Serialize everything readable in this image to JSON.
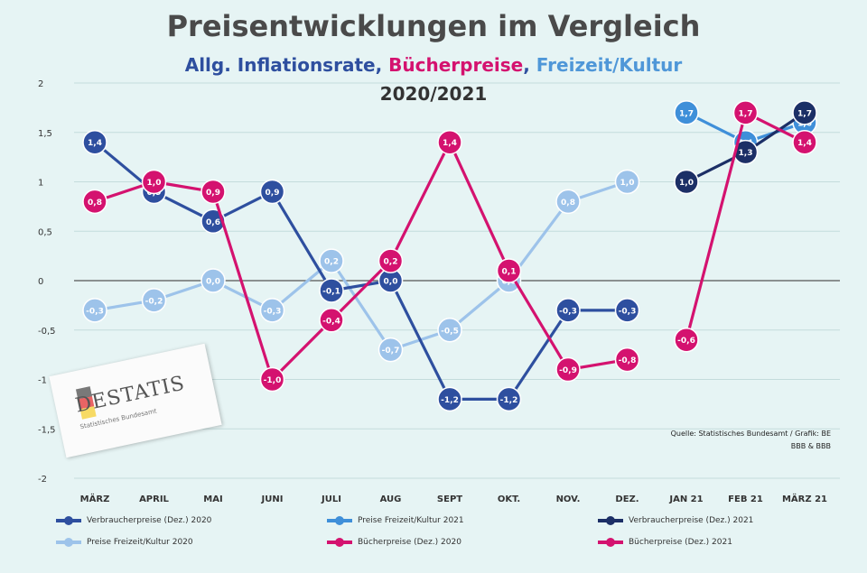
{
  "title": "Preisentwicklungen im  Vergleich",
  "subtitle": {
    "part1": "Allg. Inflationsrate",
    "sep1": ", ",
    "part2": "Bücherpreise",
    "sep2": ", ",
    "part3": "Freizeit/Kultur"
  },
  "years": "2020/2021",
  "source": {
    "line1": "Quelle: Statistisches Bundesamt / Grafik: BE",
    "line2": "BBB & BBB"
  },
  "logo": {
    "text": "DESTATIS",
    "subtext": "Statistisches Bundesamt"
  },
  "colors": {
    "inflation": "#2e4f9f",
    "inflation2021": "#1c2f66",
    "leisure2020": "#9dc3ea",
    "leisure2021": "#3f8fd9",
    "books": "#d4126f",
    "grid": "#c4dcdc",
    "axis": "#555555"
  },
  "chart_data": {
    "type": "line",
    "categories": [
      "MÄRZ",
      "APRIL",
      "MAI",
      "JUNI",
      "JULI",
      "AUG",
      "SEPT",
      "OKT.",
      "NOV.",
      "DEZ.",
      "JAN 21",
      "FEB 21",
      "MÄRZ 21"
    ],
    "ylim": [
      -2,
      2
    ],
    "yticks": [
      "2",
      "1,5",
      "1",
      "0,5",
      "0",
      "-0,5",
      "-1",
      "-1,5",
      "-2"
    ],
    "ytick_values": [
      2,
      1.5,
      1,
      0.5,
      0,
      -0.5,
      -1,
      -1.5,
      -2
    ],
    "series": [
      {
        "name": "Preise Freizeit/Kultur 2020",
        "color": "#9dc3ea",
        "labels": [
          "-0,3",
          "-0,2",
          "0,0",
          "-0,3",
          "0,2",
          "-0,7",
          "-0,5",
          "0,0",
          "0,8",
          "1,0",
          null,
          null,
          null
        ],
        "values": [
          -0.3,
          -0.2,
          0.0,
          -0.3,
          0.2,
          -0.7,
          -0.5,
          0.0,
          0.8,
          1.0,
          null,
          null,
          null
        ]
      },
      {
        "name": "Verbraucherpreise (Dez.) 2020",
        "color": "#2e4f9f",
        "labels": [
          "1,4",
          "0,9",
          "0,6",
          "0,9",
          "-0,1",
          "0,0",
          "-1,2",
          "-1,2",
          "-0,3",
          "-0,3",
          null,
          null,
          null
        ],
        "values": [
          1.4,
          0.9,
          0.6,
          0.9,
          -0.1,
          0.0,
          -1.2,
          -1.2,
          -0.3,
          -0.3,
          null,
          null,
          null
        ]
      },
      {
        "name": "Bücherpreise (Dez.) 2020",
        "color": "#d4126f",
        "labels": [
          "0,8",
          "1,0",
          "0,9",
          "-1,0",
          "-0,4",
          "0,2",
          "1,4",
          "0,1",
          "-0,9",
          "-0,8",
          null,
          null,
          null
        ],
        "values": [
          0.8,
          1.0,
          0.9,
          -1.0,
          -0.4,
          0.2,
          1.4,
          0.1,
          -0.9,
          -0.8,
          null,
          null,
          null
        ]
      },
      {
        "name": "Preise Freizeit/Kultur 2021",
        "color": "#3f8fd9",
        "labels": [
          null,
          null,
          null,
          null,
          null,
          null,
          null,
          null,
          null,
          null,
          "1,7",
          "1,4",
          "1,6"
        ],
        "values": [
          null,
          null,
          null,
          null,
          null,
          null,
          null,
          null,
          null,
          null,
          1.7,
          1.4,
          1.6
        ]
      },
      {
        "name": "Verbraucherpreise (Dez.) 2021",
        "color": "#1c2f66",
        "labels": [
          null,
          null,
          null,
          null,
          null,
          null,
          null,
          null,
          null,
          null,
          "1,0",
          "1,3",
          "1,7"
        ],
        "values": [
          null,
          null,
          null,
          null,
          null,
          null,
          null,
          null,
          null,
          null,
          1.0,
          1.3,
          1.7
        ]
      },
      {
        "name": "Bücherpreise (Dez.) 2021",
        "color": "#d4126f",
        "labels": [
          null,
          null,
          null,
          null,
          null,
          null,
          null,
          null,
          null,
          null,
          "-0,6",
          "1,7",
          "1,4"
        ],
        "values": [
          null,
          null,
          null,
          null,
          null,
          null,
          null,
          null,
          null,
          null,
          -0.6,
          1.7,
          1.4
        ]
      }
    ],
    "legend": [
      {
        "label": "Verbraucherpreise (Dez.) 2020",
        "color": "#2e4f9f"
      },
      {
        "label": "Preise Freizeit/Kultur 2021",
        "color": "#3f8fd9"
      },
      {
        "label": "Verbraucherpreise (Dez.) 2021",
        "color": "#1c2f66"
      },
      {
        "label": "Preise Freizeit/Kultur 2020",
        "color": "#9dc3ea"
      },
      {
        "label": "Bücherpreise (Dez.) 2020",
        "color": "#d4126f"
      },
      {
        "label": "Bücherpreise (Dez.) 2021",
        "color": "#d4126f"
      }
    ],
    "legend_position": "bottom",
    "grid": true
  }
}
